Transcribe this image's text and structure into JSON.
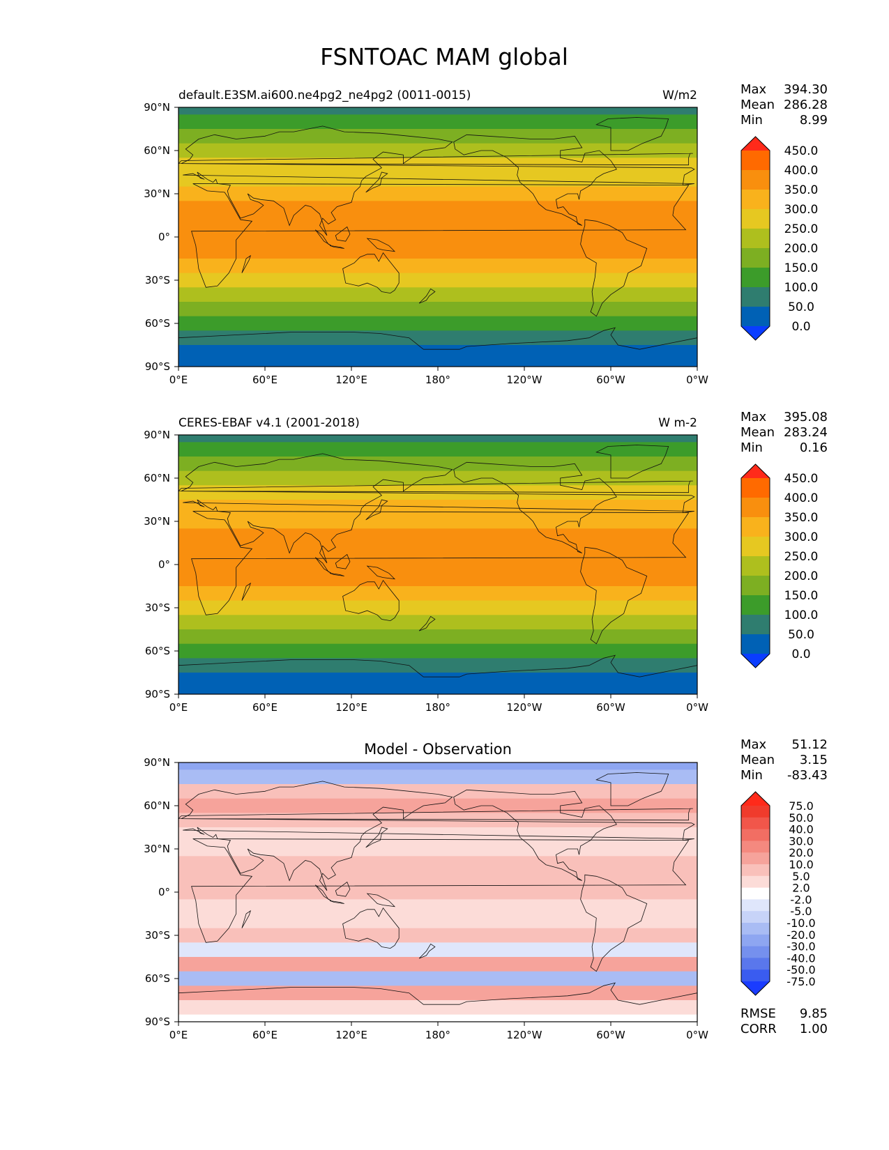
{
  "figure_title": "FSNTOAC MAM global",
  "xtick_labels": [
    "0°E",
    "60°E",
    "120°E",
    "180°",
    "120°W",
    "60°W",
    "0°W"
  ],
  "ytick_labels": [
    "90°N",
    "60°N",
    "30°N",
    "0°",
    "30°S",
    "60°S",
    "90°S"
  ],
  "chart_data": [
    {
      "type": "heatmap",
      "panel": "model",
      "title_left": "default.E3SM.ai600.ne4pg2_ne4pg2 (0011-0015)",
      "title_center": "",
      "units": "W/m2",
      "stats": [
        {
          "label": "Max",
          "value": "394.30"
        },
        {
          "label": "Mean",
          "value": "286.28"
        },
        {
          "label": "Min",
          "value": "8.99"
        }
      ],
      "colorbar": {
        "levels": [
          "450.0",
          "400.0",
          "350.0",
          "300.0",
          "250.0",
          "200.0",
          "150.0",
          "100.0",
          "50.0",
          "0.0"
        ],
        "colors": [
          "#ff2a1a",
          "#ff6a00",
          "#f98f0e",
          "#f9b21c",
          "#e6c821",
          "#aebf1e",
          "#7daf22",
          "#3c9c2a",
          "#2f7d6f",
          "#0061b5",
          "#0a3dff"
        ]
      },
      "lat_bands": [
        {
          "lat": 90,
          "value": 60
        },
        {
          "lat": 80,
          "value": 110
        },
        {
          "lat": 70,
          "value": 160
        },
        {
          "lat": 60,
          "value": 210
        },
        {
          "lat": 50,
          "value": 260
        },
        {
          "lat": 40,
          "value": 290
        },
        {
          "lat": 30,
          "value": 330
        },
        {
          "lat": 20,
          "value": 360
        },
        {
          "lat": 10,
          "value": 375
        },
        {
          "lat": 0,
          "value": 380
        },
        {
          "lat": -10,
          "value": 375
        },
        {
          "lat": -20,
          "value": 330
        },
        {
          "lat": -30,
          "value": 290
        },
        {
          "lat": -40,
          "value": 240
        },
        {
          "lat": -50,
          "value": 175
        },
        {
          "lat": -60,
          "value": 125
        },
        {
          "lat": -70,
          "value": 60
        },
        {
          "lat": -80,
          "value": 40
        },
        {
          "lat": -90,
          "value": 30
        }
      ]
    },
    {
      "type": "heatmap",
      "panel": "observation",
      "title_left": "CERES-EBAF v4.1 (2001-2018)",
      "title_center": "",
      "units": "W m-2",
      "stats": [
        {
          "label": "Max",
          "value": "395.08"
        },
        {
          "label": "Mean",
          "value": "283.24"
        },
        {
          "label": "Min",
          "value": "0.16"
        }
      ],
      "colorbar": {
        "levels": [
          "450.0",
          "400.0",
          "350.0",
          "300.0",
          "250.0",
          "200.0",
          "150.0",
          "100.0",
          "50.0",
          "0.0"
        ],
        "colors": [
          "#ff2a1a",
          "#ff6a00",
          "#f98f0e",
          "#f9b21c",
          "#e6c821",
          "#aebf1e",
          "#7daf22",
          "#3c9c2a",
          "#2f7d6f",
          "#0061b5",
          "#0a3dff"
        ]
      },
      "lat_bands": [
        {
          "lat": 90,
          "value": 60
        },
        {
          "lat": 80,
          "value": 100
        },
        {
          "lat": 70,
          "value": 150
        },
        {
          "lat": 60,
          "value": 220
        },
        {
          "lat": 50,
          "value": 255
        },
        {
          "lat": 40,
          "value": 300
        },
        {
          "lat": 30,
          "value": 340
        },
        {
          "lat": 20,
          "value": 360
        },
        {
          "lat": 10,
          "value": 370
        },
        {
          "lat": 0,
          "value": 375
        },
        {
          "lat": -10,
          "value": 365
        },
        {
          "lat": -20,
          "value": 330
        },
        {
          "lat": -30,
          "value": 285
        },
        {
          "lat": -40,
          "value": 230
        },
        {
          "lat": -50,
          "value": 170
        },
        {
          "lat": -60,
          "value": 120
        },
        {
          "lat": -70,
          "value": 60
        },
        {
          "lat": -80,
          "value": 40
        },
        {
          "lat": -90,
          "value": 30
        }
      ]
    },
    {
      "type": "heatmap",
      "panel": "difference",
      "title_left": "",
      "title_center": "Model - Observation",
      "units": "",
      "stats": [
        {
          "label": "Max",
          "value": "51.12"
        },
        {
          "label": "Mean",
          "value": "3.15"
        },
        {
          "label": "Min",
          "value": "-83.43"
        }
      ],
      "extra_stats": [
        {
          "label": "RMSE",
          "value": "9.85"
        },
        {
          "label": "CORR",
          "value": "1.00"
        }
      ],
      "colorbar": {
        "levels": [
          "75.0",
          "50.0",
          "40.0",
          "30.0",
          "20.0",
          "10.0",
          "5.0",
          "2.0",
          "-2.0",
          "-5.0",
          "-10.0",
          "-20.0",
          "-30.0",
          "-40.0",
          "-50.0",
          "-75.0"
        ],
        "colors": [
          "#ff2a1a",
          "#f03b2c",
          "#f1564a",
          "#f26e63",
          "#f4897f",
          "#f6a39b",
          "#f9c0ba",
          "#fcdcd8",
          "#ffffff",
          "#dfe6fb",
          "#c7d3f8",
          "#a9bcf4",
          "#8ea6f1",
          "#7590ee",
          "#5a77ec",
          "#3a5cf0",
          "#1a3cff"
        ]
      },
      "lat_bands": [
        {
          "lat": 90,
          "value": -22
        },
        {
          "lat": 80,
          "value": -12
        },
        {
          "lat": 70,
          "value": 6
        },
        {
          "lat": 60,
          "value": 12
        },
        {
          "lat": 50,
          "value": 8
        },
        {
          "lat": 40,
          "value": 4
        },
        {
          "lat": 30,
          "value": 3
        },
        {
          "lat": 20,
          "value": 6
        },
        {
          "lat": 10,
          "value": 9
        },
        {
          "lat": 0,
          "value": 6
        },
        {
          "lat": -10,
          "value": 4
        },
        {
          "lat": -20,
          "value": 2
        },
        {
          "lat": -30,
          "value": 8
        },
        {
          "lat": -40,
          "value": -5
        },
        {
          "lat": -50,
          "value": 12
        },
        {
          "lat": -60,
          "value": -14
        },
        {
          "lat": -70,
          "value": 10
        },
        {
          "lat": -80,
          "value": 3
        },
        {
          "lat": -90,
          "value": 1
        }
      ]
    }
  ]
}
